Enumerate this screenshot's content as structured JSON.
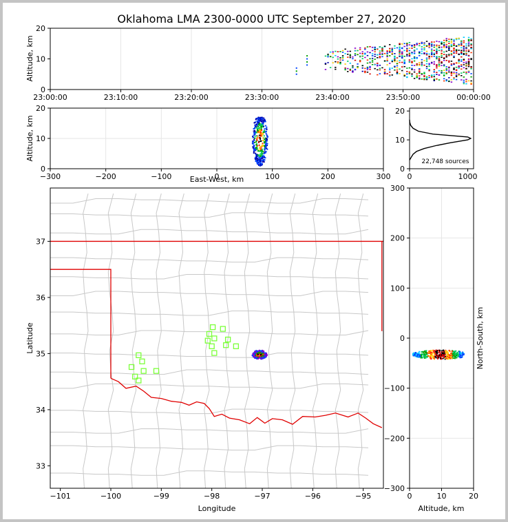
{
  "title": "Oklahoma LMA 2300-0000 UTC September 27, 2020",
  "source_count_label": "22,748 sources",
  "colors": {
    "state_border": "#e00000",
    "county_border": "#c8c8c8",
    "station_marker": "#7cff3a",
    "grid": "#e6e6e6"
  },
  "chart_data": [
    {
      "type": "scatter",
      "panel": "altitude-time",
      "xlabel": "",
      "ylabel": "Altitude, km",
      "x_tick_labels": [
        "23:00:00",
        "23:10:00",
        "23:20:00",
        "23:30:00",
        "23:40:00",
        "23:50:00",
        "00:00:00"
      ],
      "xlim": [
        0,
        60
      ],
      "ylim": [
        0,
        20
      ],
      "y_ticks": [
        0,
        10,
        20
      ],
      "clusters": [
        {
          "t": 34.9,
          "alt_min": 5,
          "alt_max": 7
        },
        {
          "t": 36.4,
          "alt_min": 8,
          "alt_max": 11
        },
        {
          "t": 40,
          "alt_min": 6,
          "alt_max": 13
        },
        {
          "t": 45,
          "alt_min": 5,
          "alt_max": 14
        },
        {
          "t": 50,
          "alt_min": 4,
          "alt_max": 15
        },
        {
          "t": 55,
          "alt_min": 3,
          "alt_max": 16
        },
        {
          "t": 59.5,
          "alt_min": 3,
          "alt_max": 17
        }
      ]
    },
    {
      "type": "scatter",
      "panel": "altitude-east-west",
      "xlabel": "East-West, km",
      "ylabel": "Altitude, km",
      "xlim": [
        -300,
        300
      ],
      "ylim": [
        0,
        20
      ],
      "x_ticks": [
        -300,
        -200,
        -100,
        0,
        100,
        200,
        300
      ],
      "y_ticks": [
        0,
        10,
        20
      ],
      "cluster": {
        "x_center": 78,
        "x_halfwidth": 14,
        "alt_min": 1,
        "alt_max": 17
      }
    },
    {
      "type": "line",
      "panel": "altitude-histogram",
      "xlim": [
        0,
        1100
      ],
      "ylim": [
        0,
        21
      ],
      "x_ticks": [
        0,
        1000
      ],
      "y_ticks": [
        0,
        10,
        20
      ],
      "points": [
        [
          0,
          3
        ],
        [
          30,
          4
        ],
        [
          60,
          5
        ],
        [
          120,
          6
        ],
        [
          250,
          7
        ],
        [
          450,
          8
        ],
        [
          700,
          9
        ],
        [
          1000,
          10
        ],
        [
          1050,
          10.5
        ],
        [
          1000,
          11
        ],
        [
          700,
          11.5
        ],
        [
          400,
          12
        ],
        [
          150,
          13
        ],
        [
          60,
          14
        ],
        [
          20,
          15
        ],
        [
          5,
          16
        ],
        [
          0,
          17
        ]
      ]
    },
    {
      "type": "scatter",
      "panel": "plan-view-map",
      "xlabel": "Longitude",
      "ylabel": "Latitude",
      "xlim": [
        -101.2,
        -94.6
      ],
      "ylim": [
        32.6,
        37.95
      ],
      "x_ticks": [
        -101,
        -100,
        -99,
        -98,
        -97,
        -96,
        -95
      ],
      "y_ticks": [
        33,
        34,
        35,
        36,
        37
      ],
      "storm": {
        "lon": -97.05,
        "lat": 34.98,
        "lon_halfwidth": 0.15,
        "lat_halfwidth": 0.08
      },
      "stations": [
        [
          -97.98,
          35.47
        ],
        [
          -98.05,
          35.35
        ],
        [
          -97.95,
          35.27
        ],
        [
          -97.78,
          35.44
        ],
        [
          -97.68,
          35.25
        ],
        [
          -98.08,
          35.23
        ],
        [
          -97.72,
          35.15
        ],
        [
          -97.52,
          35.13
        ],
        [
          -98.0,
          35.13
        ],
        [
          -97.95,
          35.01
        ],
        [
          -99.45,
          34.97
        ],
        [
          -99.38,
          34.86
        ],
        [
          -99.59,
          34.76
        ],
        [
          -99.35,
          34.69
        ],
        [
          -99.52,
          34.59
        ],
        [
          -99.45,
          34.52
        ],
        [
          -99.1,
          34.69
        ]
      ]
    },
    {
      "type": "scatter",
      "panel": "north-south-altitude",
      "xlabel": "Altitude, km",
      "ylabel": "North-South, km",
      "xlim": [
        0,
        20
      ],
      "ylim": [
        -300,
        300
      ],
      "x_ticks": [
        0,
        10,
        20
      ],
      "y_ticks": [
        -300,
        -200,
        -100,
        0,
        100,
        200,
        300
      ],
      "cluster": {
        "alt_min": 1,
        "alt_max": 17,
        "ns_center": -33,
        "ns_halfwidth": 9
      }
    }
  ]
}
